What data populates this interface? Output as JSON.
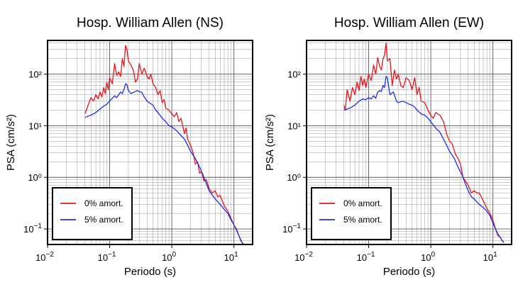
{
  "chart_data": [
    {
      "type": "line",
      "title": "Hosp. William Allen (NS)",
      "xlabel": "Periodo (s)",
      "ylabel": "PSA (cm/s²)",
      "xscale": "log",
      "yscale": "log",
      "xlim": [
        0.01,
        20
      ],
      "ylim": [
        0.05,
        450
      ],
      "grid": true,
      "legend_position": "bottom-left",
      "x_ticks": [
        {
          "value": 0.01,
          "base": "10",
          "exp": "−2"
        },
        {
          "value": 0.1,
          "base": "10",
          "exp": "−1"
        },
        {
          "value": 1,
          "base": "10",
          "exp": "0"
        },
        {
          "value": 10,
          "base": "10",
          "exp": "1"
        }
      ],
      "y_ticks": [
        {
          "value": 0.1,
          "base": "10",
          "exp": "−1"
        },
        {
          "value": 1,
          "text": "10⁰"
        },
        {
          "value": 10,
          "text": "10¹"
        },
        {
          "value": 100,
          "text": "10²"
        }
      ],
      "series": [
        {
          "name": "0% amort.",
          "color": "#e8141b",
          "points": [
            [
              0.04,
              17
            ],
            [
              0.045,
              25
            ],
            [
              0.05,
              35
            ],
            [
              0.055,
              30
            ],
            [
              0.06,
              40
            ],
            [
              0.065,
              33
            ],
            [
              0.07,
              45
            ],
            [
              0.075,
              36
            ],
            [
              0.08,
              55
            ],
            [
              0.085,
              42
            ],
            [
              0.09,
              70
            ],
            [
              0.095,
              50
            ],
            [
              0.1,
              85
            ],
            [
              0.11,
              65
            ],
            [
              0.12,
              160
            ],
            [
              0.13,
              95
            ],
            [
              0.14,
              110
            ],
            [
              0.15,
              90
            ],
            [
              0.16,
              200
            ],
            [
              0.17,
              140
            ],
            [
              0.18,
              360
            ],
            [
              0.19,
              300
            ],
            [
              0.2,
              180
            ],
            [
              0.22,
              150
            ],
            [
              0.24,
              120
            ],
            [
              0.26,
              70
            ],
            [
              0.28,
              80
            ],
            [
              0.3,
              160
            ],
            [
              0.33,
              100
            ],
            [
              0.36,
              130
            ],
            [
              0.4,
              90
            ],
            [
              0.43,
              80
            ],
            [
              0.46,
              100
            ],
            [
              0.5,
              65
            ],
            [
              0.55,
              55
            ],
            [
              0.6,
              40
            ],
            [
              0.65,
              48
            ],
            [
              0.7,
              28
            ],
            [
              0.75,
              32
            ],
            [
              0.8,
              22
            ],
            [
              0.9,
              20
            ],
            [
              1.0,
              17
            ],
            [
              1.1,
              15
            ],
            [
              1.2,
              18
            ],
            [
              1.3,
              12
            ],
            [
              1.4,
              14
            ],
            [
              1.5,
              10
            ],
            [
              1.6,
              7
            ],
            [
              1.7,
              9
            ],
            [
              1.8,
              5.5
            ],
            [
              2.0,
              4.2
            ],
            [
              2.2,
              3.0
            ],
            [
              2.4,
              1.8
            ],
            [
              2.6,
              2.0
            ],
            [
              2.8,
              1.2
            ],
            [
              3.0,
              1.3
            ],
            [
              3.3,
              0.85
            ],
            [
              3.6,
              0.9
            ],
            [
              4.0,
              0.6
            ],
            [
              4.5,
              0.5
            ],
            [
              5.0,
              0.55
            ],
            [
              5.5,
              0.42
            ],
            [
              6.0,
              0.45
            ],
            [
              7.0,
              0.28
            ],
            [
              8.0,
              0.22
            ],
            [
              9.0,
              0.16
            ],
            [
              10.0,
              0.12
            ],
            [
              11.0,
              0.1
            ],
            [
              12.0,
              0.075
            ],
            [
              13.0,
              0.058
            ],
            [
              14.0,
              0.052
            ],
            [
              15.0,
              0.05
            ]
          ]
        },
        {
          "name": "5% amort.",
          "color": "#1c2ee6",
          "points": [
            [
              0.04,
              14.5
            ],
            [
              0.05,
              16
            ],
            [
              0.06,
              18
            ],
            [
              0.07,
              21
            ],
            [
              0.08,
              24
            ],
            [
              0.09,
              26
            ],
            [
              0.1,
              30
            ],
            [
              0.11,
              34
            ],
            [
              0.12,
              38
            ],
            [
              0.13,
              35
            ],
            [
              0.14,
              40
            ],
            [
              0.15,
              45
            ],
            [
              0.16,
              42
            ],
            [
              0.17,
              50
            ],
            [
              0.18,
              65
            ],
            [
              0.19,
              62
            ],
            [
              0.2,
              48
            ],
            [
              0.22,
              42
            ],
            [
              0.25,
              45
            ],
            [
              0.28,
              48
            ],
            [
              0.3,
              46
            ],
            [
              0.33,
              44
            ],
            [
              0.36,
              36
            ],
            [
              0.4,
              30
            ],
            [
              0.45,
              27
            ],
            [
              0.5,
              25
            ],
            [
              0.55,
              20
            ],
            [
              0.6,
              18
            ],
            [
              0.7,
              14
            ],
            [
              0.8,
              12
            ],
            [
              0.9,
              10
            ],
            [
              1.0,
              9.5
            ],
            [
              1.2,
              8
            ],
            [
              1.4,
              6.5
            ],
            [
              1.6,
              5.5
            ],
            [
              1.8,
              4.2
            ],
            [
              2.0,
              3.2
            ],
            [
              2.4,
              2.3
            ],
            [
              2.8,
              1.6
            ],
            [
              3.2,
              1.1
            ],
            [
              3.6,
              0.75
            ],
            [
              4.0,
              0.55
            ],
            [
              4.5,
              0.45
            ],
            [
              5.0,
              0.38
            ],
            [
              6.0,
              0.3
            ],
            [
              7.0,
              0.24
            ],
            [
              8.0,
              0.2
            ],
            [
              9.0,
              0.15
            ],
            [
              10.0,
              0.12
            ],
            [
              11.0,
              0.095
            ],
            [
              12.0,
              0.075
            ],
            [
              13.0,
              0.06
            ],
            [
              14.0,
              0.05
            ]
          ]
        }
      ]
    },
    {
      "type": "line",
      "title": "Hosp. William Allen (EW)",
      "xlabel": "Periodo (s)",
      "ylabel": "PSA (cm/s²)",
      "xscale": "log",
      "yscale": "log",
      "xlim": [
        0.01,
        20
      ],
      "ylim": [
        0.05,
        450
      ],
      "grid": true,
      "legend_position": "bottom-left",
      "x_ticks": [
        {
          "value": 0.01,
          "base": "10",
          "exp": "−2"
        },
        {
          "value": 0.1,
          "base": "10",
          "exp": "−1"
        },
        {
          "value": 1,
          "base": "10",
          "exp": "0"
        },
        {
          "value": 10,
          "base": "10",
          "exp": "1"
        }
      ],
      "y_ticks": [
        {
          "value": 0.1,
          "base": "10",
          "exp": "−1"
        },
        {
          "value": 1,
          "text": "10⁰"
        },
        {
          "value": 10,
          "text": "10¹"
        },
        {
          "value": 100,
          "text": "10²"
        }
      ],
      "series": [
        {
          "name": "0% amort.",
          "color": "#e8141b",
          "points": [
            [
              0.04,
              25
            ],
            [
              0.042,
              20
            ],
            [
              0.045,
              50
            ],
            [
              0.05,
              30
            ],
            [
              0.055,
              55
            ],
            [
              0.06,
              40
            ],
            [
              0.065,
              70
            ],
            [
              0.07,
              48
            ],
            [
              0.075,
              90
            ],
            [
              0.08,
              60
            ],
            [
              0.085,
              80
            ],
            [
              0.09,
              55
            ],
            [
              0.1,
              100
            ],
            [
              0.11,
              75
            ],
            [
              0.12,
              150
            ],
            [
              0.13,
              100
            ],
            [
              0.14,
              210
            ],
            [
              0.15,
              140
            ],
            [
              0.16,
              120
            ],
            [
              0.17,
              200
            ],
            [
              0.18,
              230
            ],
            [
              0.19,
              400
            ],
            [
              0.2,
              180
            ],
            [
              0.22,
              200
            ],
            [
              0.24,
              60
            ],
            [
              0.26,
              120
            ],
            [
              0.28,
              80
            ],
            [
              0.3,
              100
            ],
            [
              0.33,
              60
            ],
            [
              0.36,
              55
            ],
            [
              0.4,
              85
            ],
            [
              0.45,
              75
            ],
            [
              0.5,
              50
            ],
            [
              0.55,
              85
            ],
            [
              0.6,
              40
            ],
            [
              0.65,
              55
            ],
            [
              0.7,
              30
            ],
            [
              0.8,
              28
            ],
            [
              0.9,
              20
            ],
            [
              1.0,
              16
            ],
            [
              1.1,
              14
            ],
            [
              1.2,
              18
            ],
            [
              1.4,
              16
            ],
            [
              1.6,
              12
            ],
            [
              1.8,
              7
            ],
            [
              2.0,
              5
            ],
            [
              2.2,
              4.5
            ],
            [
              2.5,
              2.8
            ],
            [
              2.8,
              2.2
            ],
            [
              3.0,
              1.8
            ],
            [
              3.3,
              1.0
            ],
            [
              3.6,
              0.85
            ],
            [
              4.0,
              0.7
            ],
            [
              4.5,
              0.5
            ],
            [
              5.0,
              0.55
            ],
            [
              5.5,
              0.5
            ],
            [
              6.0,
              0.5
            ],
            [
              7.0,
              0.35
            ],
            [
              8.0,
              0.25
            ],
            [
              9.0,
              0.2
            ],
            [
              10.0,
              0.15
            ],
            [
              11.0,
              0.1
            ],
            [
              12.0,
              0.075
            ],
            [
              13.0,
              0.07
            ],
            [
              14.0,
              0.06
            ],
            [
              15.0,
              0.055
            ]
          ]
        },
        {
          "name": "5% amort.",
          "color": "#1c2ee6",
          "points": [
            [
              0.04,
              20
            ],
            [
              0.05,
              22
            ],
            [
              0.06,
              25
            ],
            [
              0.07,
              30
            ],
            [
              0.08,
              33
            ],
            [
              0.09,
              32
            ],
            [
              0.1,
              35
            ],
            [
              0.11,
              33
            ],
            [
              0.12,
              38
            ],
            [
              0.13,
              34
            ],
            [
              0.14,
              45
            ],
            [
              0.15,
              48
            ],
            [
              0.16,
              46
            ],
            [
              0.17,
              60
            ],
            [
              0.18,
              55
            ],
            [
              0.19,
              90
            ],
            [
              0.2,
              85
            ],
            [
              0.22,
              40
            ],
            [
              0.25,
              45
            ],
            [
              0.28,
              30
            ],
            [
              0.3,
              28
            ],
            [
              0.35,
              30
            ],
            [
              0.4,
              28
            ],
            [
              0.45,
              26
            ],
            [
              0.5,
              25
            ],
            [
              0.55,
              23
            ],
            [
              0.6,
              20
            ],
            [
              0.7,
              17
            ],
            [
              0.8,
              16
            ],
            [
              0.9,
              14
            ],
            [
              1.0,
              12
            ],
            [
              1.2,
              9
            ],
            [
              1.4,
              7.5
            ],
            [
              1.6,
              5.5
            ],
            [
              1.8,
              4.2
            ],
            [
              2.0,
              3.2
            ],
            [
              2.4,
              2.3
            ],
            [
              2.8,
              1.5
            ],
            [
              3.2,
              1.1
            ],
            [
              3.6,
              0.75
            ],
            [
              4.0,
              0.55
            ],
            [
              4.5,
              0.42
            ],
            [
              5.0,
              0.38
            ],
            [
              6.0,
              0.3
            ],
            [
              7.0,
              0.26
            ],
            [
              8.0,
              0.22
            ],
            [
              9.0,
              0.18
            ],
            [
              10.0,
              0.13
            ],
            [
              11.0,
              0.1
            ],
            [
              12.0,
              0.08
            ],
            [
              13.0,
              0.07
            ],
            [
              14.0,
              0.06
            ],
            [
              15.0,
              0.055
            ]
          ]
        }
      ]
    }
  ]
}
